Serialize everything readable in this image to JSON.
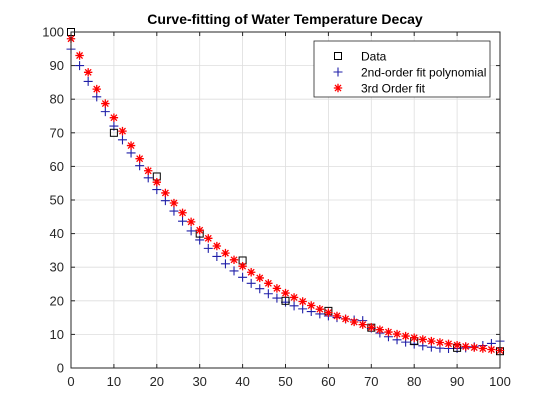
{
  "chart_data": {
    "type": "scatter",
    "title": "Curve-fitting of Water Temperature Decay",
    "xlabel": "",
    "ylabel": "",
    "xlim": [
      0,
      100
    ],
    "ylim": [
      0,
      100
    ],
    "xticks": [
      0,
      10,
      20,
      30,
      40,
      50,
      60,
      70,
      80,
      90,
      100
    ],
    "yticks": [
      0,
      10,
      20,
      30,
      40,
      50,
      60,
      70,
      80,
      90,
      100
    ],
    "grid": true,
    "legend_position": "top-right",
    "series": [
      {
        "name": "Data",
        "marker": "square",
        "color": "#000000",
        "x": [
          0,
          10,
          20,
          30,
          40,
          50,
          60,
          70,
          80,
          90,
          100
        ],
        "y": [
          100,
          70,
          57,
          40,
          32,
          20,
          17,
          12,
          8,
          6,
          5
        ]
      },
      {
        "name": "2nd-order fit polynomial",
        "marker": "plus",
        "color": "#1f1fa8",
        "x": [
          0,
          2,
          4,
          6,
          8,
          10,
          12,
          14,
          16,
          18,
          20,
          22,
          24,
          26,
          28,
          30,
          32,
          34,
          36,
          38,
          40,
          42,
          44,
          46,
          48,
          50,
          52,
          54,
          56,
          58,
          60,
          62,
          64,
          66,
          68,
          70,
          72,
          74,
          76,
          78,
          80,
          82,
          84,
          86,
          88,
          90,
          92,
          94,
          96,
          98,
          100
        ],
        "y": [
          94.9,
          90.0,
          85.3,
          80.7,
          76.3,
          72.0,
          67.9,
          64.0,
          60.2,
          56.6,
          53.1,
          49.8,
          46.7,
          43.7,
          40.8,
          38.1,
          35.6,
          33.2,
          31.0,
          28.9,
          27.0,
          25.2,
          23.6,
          22.1,
          20.8,
          19.6,
          18.5,
          17.6,
          16.8,
          16.1,
          15.5,
          15.0,
          14.6,
          14.3,
          14.1,
          11.9,
          10.4,
          9.3,
          8.4,
          7.7,
          7.1,
          6.6,
          6.2,
          5.9,
          5.8,
          5.8,
          6.0,
          6.3,
          6.7,
          7.3,
          8.0
        ]
      },
      {
        "name": "3rd Order fit",
        "marker": "asterisk",
        "color": "#ff0000",
        "x": [
          0,
          2,
          4,
          6,
          8,
          10,
          12,
          14,
          16,
          18,
          20,
          22,
          24,
          26,
          28,
          30,
          32,
          34,
          36,
          38,
          40,
          42,
          44,
          46,
          48,
          50,
          52,
          54,
          56,
          58,
          60,
          62,
          64,
          66,
          68,
          70,
          72,
          74,
          76,
          78,
          80,
          82,
          84,
          86,
          88,
          90,
          92,
          94,
          96,
          98,
          100
        ],
        "y": [
          98.0,
          93.0,
          88.0,
          83.0,
          78.7,
          74.5,
          70.5,
          66.2,
          62.3,
          58.7,
          55.3,
          52.1,
          49.1,
          46.2,
          43.5,
          41.0,
          38.6,
          36.3,
          34.2,
          32.2,
          30.3,
          28.5,
          26.8,
          25.2,
          23.7,
          22.3,
          21.0,
          19.8,
          18.6,
          17.5,
          16.5,
          15.5,
          14.6,
          13.7,
          12.9,
          12.1,
          11.4,
          10.7,
          10.1,
          9.5,
          9.0,
          8.5,
          8.0,
          7.6,
          7.2,
          6.8,
          6.4,
          6.1,
          5.8,
          5.5,
          5.2
        ]
      }
    ]
  }
}
